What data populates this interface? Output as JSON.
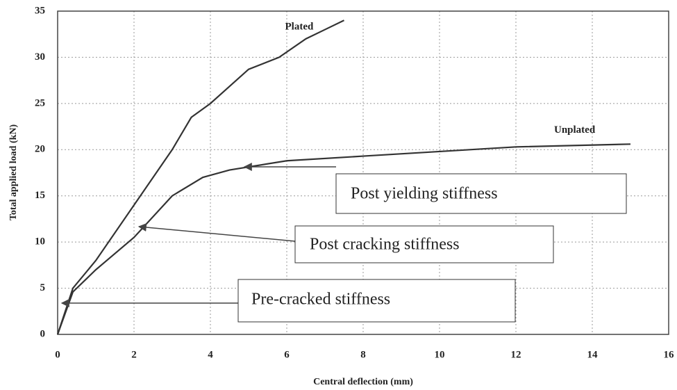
{
  "chart_data": {
    "type": "line",
    "xlabel": "Central deflection (mm)",
    "ylabel": "Total applied load (kN)",
    "xlim": [
      0,
      16
    ],
    "xticks": [
      0,
      2,
      4,
      6,
      8,
      10,
      12,
      14,
      16
    ],
    "ylim": [
      0,
      35
    ],
    "yticks": [
      0,
      5,
      10,
      15,
      20,
      25,
      30,
      35
    ],
    "grid": true,
    "series": [
      {
        "name": "Plated",
        "color": "#333333",
        "x": [
          0,
          0.4,
          1,
          2,
          3,
          3.5,
          4,
          5,
          5.8,
          6.5,
          7,
          7.5
        ],
        "values": [
          0,
          5,
          8,
          14,
          20,
          23.5,
          25,
          28.7,
          30,
          32,
          33,
          34
        ]
      },
      {
        "name": "Unplated",
        "color": "#333333",
        "x": [
          0,
          0.4,
          1,
          2,
          3,
          3.8,
          4.5,
          6,
          8,
          10,
          12,
          15
        ],
        "values": [
          0,
          4.6,
          7,
          10.5,
          15,
          17,
          17.8,
          18.8,
          19.3,
          19.8,
          20.3,
          20.6
        ]
      }
    ],
    "annotations": [
      "Post yielding stiffness",
      "Post cracking stiffness",
      "Pre-cracked stiffness"
    ]
  }
}
